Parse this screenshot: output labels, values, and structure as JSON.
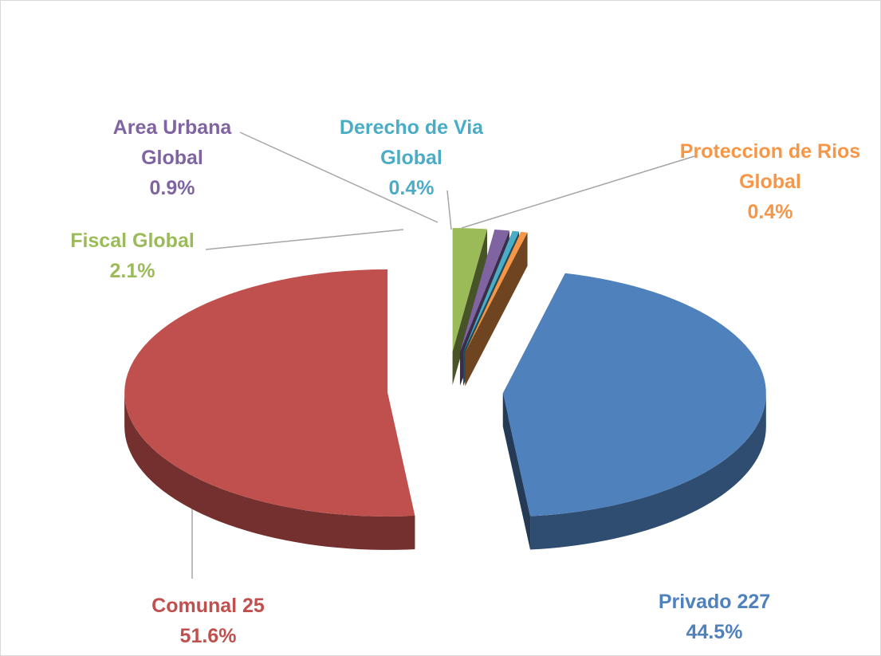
{
  "chart_data": {
    "type": "pie3d",
    "categories": [
      "Privado 227",
      "Comunal 25",
      "Fiscal Global",
      "Area Urbana Global",
      "Derecho de Via Global",
      "Proteccion de Rios Global"
    ],
    "values": [
      44.5,
      51.6,
      2.1,
      0.9,
      0.4,
      0.4
    ],
    "value_labels": [
      "44.5%",
      "51.6%",
      "2.1%",
      "0.9%",
      "0.4%",
      "0.4%"
    ],
    "colors": [
      "#4f81bd",
      "#c0504d",
      "#9bbb59",
      "#8064a2",
      "#4bacc6",
      "#f79646"
    ]
  }
}
